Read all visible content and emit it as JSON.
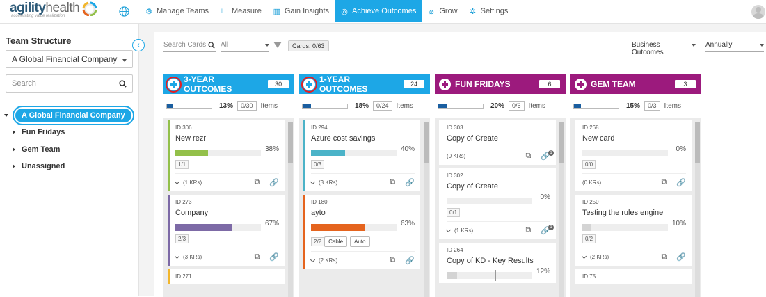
{
  "app": {
    "brand_main": "agility",
    "brand_sub": "health",
    "brand_reg": "®",
    "tagline": "accelerating value realization"
  },
  "nav": {
    "items": [
      {
        "label": "Manage Teams",
        "icon": "teams-icon",
        "active": false
      },
      {
        "label": "Measure",
        "icon": "measure-icon",
        "active": false
      },
      {
        "label": "Gain Insights",
        "icon": "insights-icon",
        "active": false
      },
      {
        "label": "Achieve Outcomes",
        "icon": "target-icon",
        "active": true
      },
      {
        "label": "Grow",
        "icon": "leaf-icon",
        "active": false
      },
      {
        "label": "Settings",
        "icon": "gear-icon",
        "active": false
      }
    ]
  },
  "sidebar": {
    "title": "Team Structure",
    "company_select": "A Global Financial Company",
    "search_placeholder": "Search",
    "root": "A Global Financial Company",
    "items": [
      "Fun Fridays",
      "Gem Team",
      "Unassigned"
    ]
  },
  "toolbar": {
    "search_placeholder": "Search Cards",
    "all_label": "All",
    "cards_count": "Cards: 0/63",
    "outcomes_select": "Business Outcomes",
    "period_select": "Annually"
  },
  "columns": [
    {
      "title": "3-YEAR OUTCOMES",
      "count": "30",
      "pct": "13%",
      "ratio": "0/30",
      "items_label": "Items",
      "color": "#1da7e6",
      "progress": 0.13,
      "cards": [
        {
          "id": "ID 306",
          "title": "New rezr",
          "pct": "38%",
          "fill": 0.38,
          "fill_color": "#93c04a",
          "border": "#93c04a",
          "ratio": "1/1",
          "foot": "(1 KRs)"
        },
        {
          "id": "ID 273",
          "title": "Company",
          "pct": "67%",
          "fill": 0.67,
          "fill_color": "#7d6aa6",
          "border": "#7d6aa6",
          "ratio": "2/3",
          "foot": "(3 KRs)"
        },
        {
          "id": "ID 271",
          "title": "",
          "pct": "",
          "fill": 0,
          "fill_color": "#f2b62c",
          "border": "#f2b62c",
          "ratio": "",
          "foot": ""
        }
      ]
    },
    {
      "title": "1-YEAR OUTCOMES",
      "count": "24",
      "pct": "18%",
      "ratio": "0/24",
      "items_label": "Items",
      "color": "#1da7e6",
      "progress": 0.18,
      "cards": [
        {
          "id": "ID 294",
          "title": "Azure cost savings",
          "pct": "40%",
          "fill": 0.4,
          "fill_color": "#4bb3c8",
          "border": "#4bb3c8",
          "ratio": "0/3",
          "foot": "(3 KRs)"
        },
        {
          "id": "ID 180",
          "title": "ayto",
          "pct": "63%",
          "fill": 0.63,
          "fill_color": "#e5641e",
          "border": "#e5641e",
          "ratio": "2/2",
          "foot": "(2 KRs)",
          "tags": [
            "Cable",
            "Auto"
          ]
        }
      ]
    },
    {
      "title": "FUN FRIDAYS",
      "count": "6",
      "pct": "20%",
      "ratio": "0/6",
      "items_label": "Items",
      "color": "#9c1a7d",
      "progress": 0.2,
      "cards": [
        {
          "id": "ID 303",
          "title": "Copy of Create",
          "nokr": "(0 KRs)",
          "badge": "1"
        },
        {
          "id": "ID 302",
          "title": "Copy of Create",
          "pct": "0%",
          "fill": 0,
          "ratio": "0/1",
          "foot": "(1 KRs)",
          "badge": "1"
        },
        {
          "id": "ID 264",
          "title": "Copy of KD - Key Results",
          "pct": "12%",
          "fill": 0.12,
          "fill_color": "#d4d4d4",
          "marker": 0.57
        }
      ]
    },
    {
      "title": "GEM TEAM",
      "count": "3",
      "pct": "15%",
      "ratio": "0/3",
      "items_label": "Items",
      "color": "#9c1a7d",
      "progress": 0.15,
      "cards": [
        {
          "id": "ID 268",
          "title": "New card",
          "pct": "0%",
          "fill": 0,
          "ratio": "0/0",
          "nokr": "(0 KRs)"
        },
        {
          "id": "ID 250",
          "title": "Testing the rules engine",
          "pct": "10%",
          "fill": 0.1,
          "fill_color": "#d4d4d4",
          "marker": 0.66,
          "ratio": "0/2",
          "foot": "(2 KRs)"
        },
        {
          "id": "ID 75",
          "title": ""
        }
      ]
    }
  ]
}
